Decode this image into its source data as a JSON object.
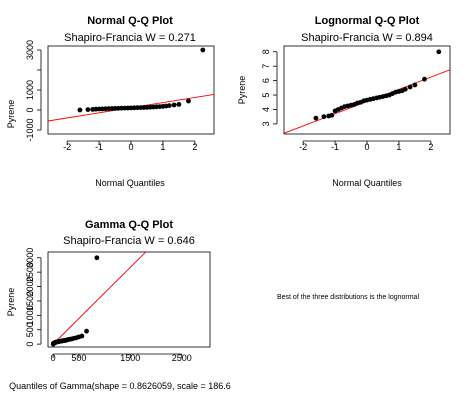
{
  "chart_data": [
    {
      "type": "scatter",
      "title": "Normal Q-Q Plot",
      "subtitle": "Shapiro-Francia W = 0.271",
      "xlabel": "Normal Quantiles",
      "ylabel": "Pyrene",
      "xlim": [
        -2.6,
        2.6
      ],
      "ylim": [
        -1200,
        3200
      ],
      "xticks": [
        -2,
        -1,
        0,
        1,
        2
      ],
      "yticks": [
        -1000,
        0,
        1000,
        2000,
        3000
      ],
      "ytick_labels": [
        "-1000",
        "0",
        "1000",
        "",
        "3000"
      ],
      "line": {
        "x": [
          -2.6,
          2.6
        ],
        "y": [
          -550,
          780
        ],
        "color": "#ff0000"
      },
      "point_color": "#000000",
      "points": {
        "x": [
          -1.6,
          -1.35,
          -1.2,
          -1.1,
          -1.0,
          -0.9,
          -0.8,
          -0.7,
          -0.6,
          -0.5,
          -0.4,
          -0.3,
          -0.2,
          -0.1,
          0.0,
          0.1,
          0.2,
          0.3,
          0.4,
          0.5,
          0.6,
          0.7,
          0.8,
          0.9,
          1.0,
          1.1,
          1.2,
          1.35,
          1.5,
          1.8,
          2.25
        ],
        "y": [
          0,
          20,
          30,
          40,
          50,
          55,
          60,
          70,
          75,
          80,
          85,
          90,
          95,
          100,
          105,
          110,
          115,
          120,
          125,
          130,
          140,
          150,
          160,
          170,
          180,
          200,
          220,
          250,
          280,
          450,
          3000
        ]
      }
    },
    {
      "type": "scatter",
      "title": "Lognormal Q-Q Plot",
      "subtitle": "Shapiro-Francia W = 0.894",
      "xlabel": "Normal Quantiles",
      "ylabel": "Pyrene",
      "xlim": [
        -2.6,
        2.6
      ],
      "ylim": [
        2.3,
        8.4
      ],
      "xticks": [
        -2,
        -1,
        0,
        1,
        2
      ],
      "yticks": [
        3,
        4,
        5,
        6,
        7,
        8
      ],
      "ytick_labels": [
        "3",
        "4",
        "5",
        "6",
        "7",
        "8"
      ],
      "line": {
        "x": [
          -2.6,
          2.6
        ],
        "y": [
          2.35,
          6.75
        ],
        "color": "#ff0000"
      },
      "point_color": "#000000",
      "points": {
        "x": [
          -1.6,
          -1.35,
          -1.2,
          -1.1,
          -1.0,
          -0.9,
          -0.8,
          -0.7,
          -0.6,
          -0.5,
          -0.4,
          -0.3,
          -0.2,
          -0.1,
          0.0,
          0.1,
          0.2,
          0.3,
          0.4,
          0.5,
          0.6,
          0.7,
          0.8,
          0.9,
          1.0,
          1.1,
          1.2,
          1.35,
          1.5,
          1.8,
          2.25
        ],
        "y": [
          3.4,
          3.5,
          3.55,
          3.6,
          3.9,
          4.0,
          4.1,
          4.2,
          4.25,
          4.3,
          4.35,
          4.45,
          4.5,
          4.6,
          4.65,
          4.7,
          4.75,
          4.8,
          4.85,
          4.9,
          4.95,
          5.0,
          5.1,
          5.2,
          5.25,
          5.3,
          5.4,
          5.55,
          5.7,
          6.1,
          8.0
        ]
      }
    },
    {
      "type": "scatter",
      "title": "Gamma Q-Q Plot",
      "subtitle": "Shapiro-Francia W = 0.646",
      "xlabel": "Quantiles of Gamma(shape = 0.8626059, scale = 186.6",
      "ylabel": "Pyrene",
      "xlim": [
        -100,
        3050
      ],
      "ylim": [
        -100,
        3200
      ],
      "xticks": [
        0,
        500,
        1500,
        2500
      ],
      "yticks": [
        0,
        500,
        1000,
        1500,
        2000,
        2500,
        3000
      ],
      "ytick_labels": [
        "0",
        "500",
        "1000",
        "1500",
        "2000",
        "2500",
        "3000"
      ],
      "line": {
        "x": [
          0,
          1800
        ],
        "y": [
          0,
          3200
        ],
        "color": "#ff0000"
      },
      "point_color": "#000000",
      "points": {
        "x": [
          2,
          5,
          10,
          20,
          30,
          40,
          50,
          60,
          70,
          80,
          95,
          110,
          125,
          140,
          155,
          170,
          185,
          200,
          220,
          240,
          260,
          280,
          300,
          330,
          360,
          400,
          450,
          500,
          560,
          650,
          850
        ],
        "y": [
          0,
          20,
          30,
          40,
          50,
          55,
          60,
          70,
          75,
          80,
          85,
          90,
          95,
          100,
          105,
          110,
          115,
          120,
          125,
          130,
          140,
          150,
          160,
          170,
          180,
          200,
          220,
          250,
          280,
          450,
          3000
        ]
      }
    }
  ],
  "note": "Best of the three distributions is the lognormal"
}
